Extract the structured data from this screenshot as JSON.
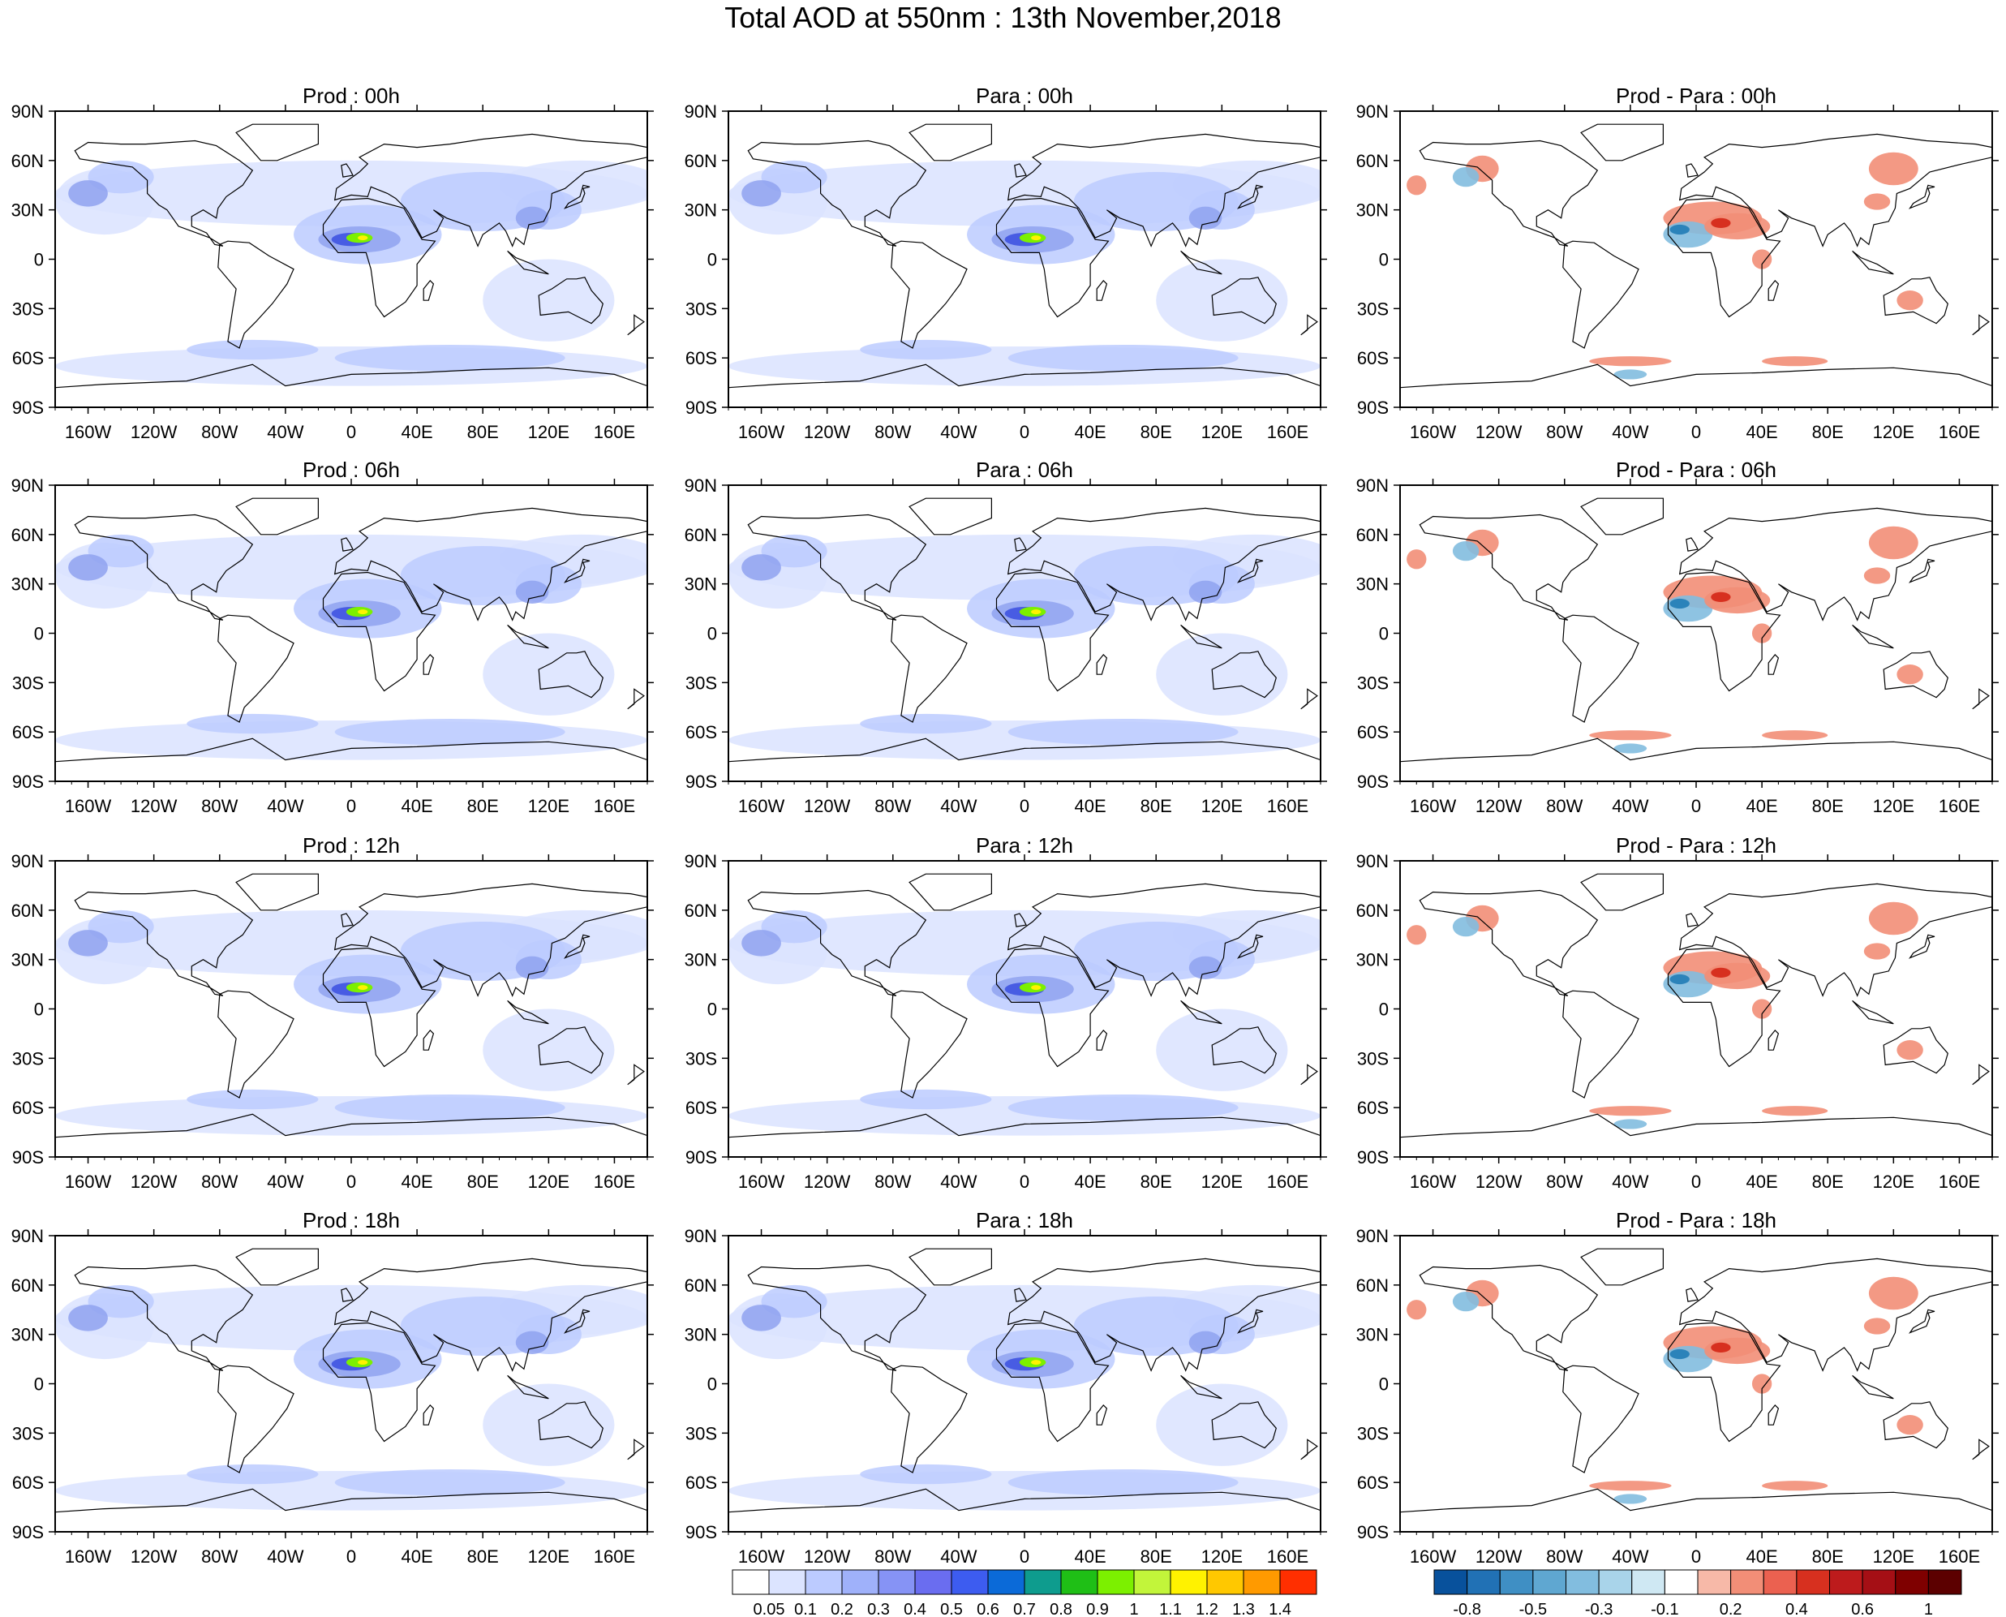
{
  "title": "Total AOD at 550nm : 13th November,2018",
  "colors": {
    "land_outline": "#000000",
    "frame": "#000000",
    "aod_low": "#dbe3ff",
    "aod_mid": "#8fa2f0",
    "aod_high": "#3a4fe0",
    "diff_neg": "#2b83ba",
    "diff_pos": "#d7301f"
  },
  "x_ticks": [
    "160W",
    "120W",
    "80W",
    "40W",
    "0",
    "40E",
    "80E",
    "120E",
    "160E"
  ],
  "y_ticks": [
    "90N",
    "60N",
    "30N",
    "0",
    "30S",
    "60S",
    "90S"
  ],
  "panel_titles": [
    [
      "Prod : 00h",
      "Para : 00h",
      "Prod - Para : 00h"
    ],
    [
      "Prod : 06h",
      "Para : 06h",
      "Prod - Para : 06h"
    ],
    [
      "Prod : 12h",
      "Para : 12h",
      "Prod - Para : 12h"
    ],
    [
      "Prod : 18h",
      "Para : 18h",
      "Prod - Para : 18h"
    ]
  ],
  "aod_colorbar": {
    "labels": [
      "0.05",
      "0.1",
      "0.2",
      "0.3",
      "0.4",
      "0.5",
      "0.6",
      "0.7",
      "0.8",
      "0.9",
      "1",
      "1.1",
      "1.2",
      "1.3",
      "1.4"
    ],
    "colors": [
      "#ffffff",
      "#dce4ff",
      "#bccbff",
      "#9fb1fa",
      "#8693f5",
      "#6a6df0",
      "#3d5cf0",
      "#0b6ad8",
      "#0e9c8e",
      "#1fbf16",
      "#7cf000",
      "#c2f53a",
      "#fff200",
      "#ffc800",
      "#ff9a00",
      "#ff2f00"
    ]
  },
  "diff_colorbar": {
    "labels": [
      "-0.8",
      "-0.5",
      "-0.3",
      "-0.1",
      "0.2",
      "0.4",
      "0.6",
      "1"
    ],
    "colors": [
      "#08519c",
      "#2171b5",
      "#3f8fc4",
      "#5fa7d1",
      "#82bddf",
      "#a9d4ea",
      "#cfe8f3",
      "#ffffff",
      "#f7b9a8",
      "#f28e77",
      "#eb6150",
      "#d7301f",
      "#bd1b1c",
      "#a50f15",
      "#7f0000",
      "#5c0000"
    ]
  }
}
